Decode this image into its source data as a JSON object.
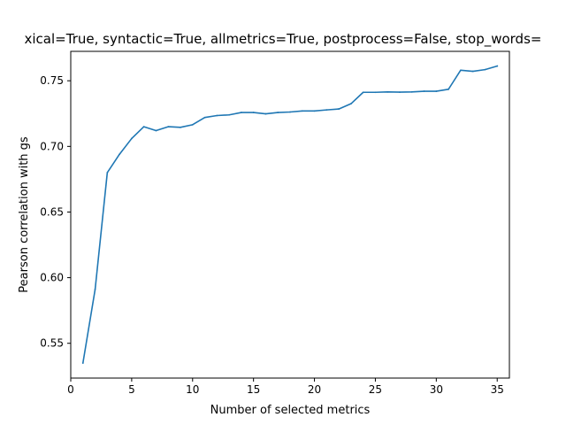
{
  "chart_data": {
    "type": "line",
    "title": "xical=True, syntactic=True, allmetrics=True, postprocess=False, stop_words=",
    "xlabel": "Number of selected metrics",
    "ylabel": "Pearson correlation with gs",
    "xlim": [
      0.0,
      36.0
    ],
    "ylim": [
      0.5235,
      0.7724
    ],
    "x_ticks": [
      0,
      5,
      10,
      15,
      20,
      25,
      30,
      35
    ],
    "y_ticks": [
      0.55,
      0.6,
      0.65,
      0.7,
      0.75
    ],
    "grid": false,
    "line_color": "#1f77b4",
    "series": [
      {
        "x": [
          1,
          2,
          3,
          4,
          5,
          6,
          7,
          8,
          9,
          10,
          11,
          12,
          13,
          14,
          15,
          16,
          17,
          18,
          19,
          20,
          21,
          22,
          23,
          24,
          25,
          26,
          27,
          28,
          29,
          30,
          31,
          32,
          33,
          34,
          35
        ],
        "values": [
          0.535,
          0.591,
          0.68,
          0.694,
          0.706,
          0.715,
          0.712,
          0.715,
          0.7145,
          0.7165,
          0.722,
          0.7235,
          0.724,
          0.7258,
          0.7258,
          0.7248,
          0.7258,
          0.7262,
          0.727,
          0.727,
          0.7278,
          0.7285,
          0.7325,
          0.7412,
          0.7412,
          0.7415,
          0.7413,
          0.7415,
          0.742,
          0.742,
          0.7435,
          0.758,
          0.7572,
          0.7585,
          0.7612
        ]
      }
    ]
  }
}
